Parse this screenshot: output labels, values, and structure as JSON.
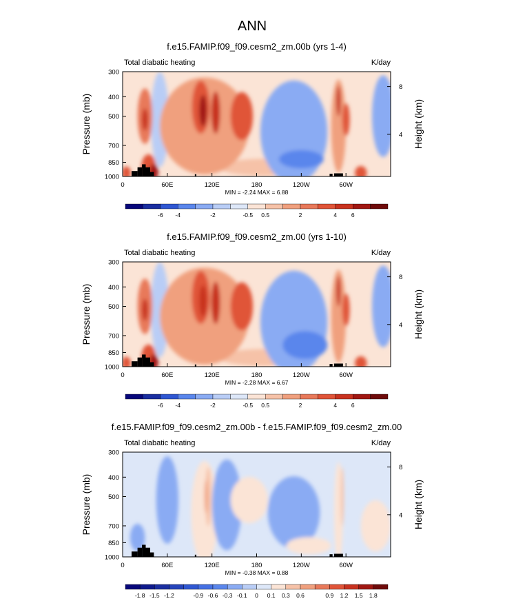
{
  "figure_title": "ANN",
  "chart_data": [
    {
      "type": "heatmap",
      "title": "f.e15.FAMIP.f09_f09.cesm2_zm.00b (yrs 1-4)",
      "left_string": "Total diabatic heating",
      "right_string": "K/day",
      "ylabel": "Pressure (mb)",
      "ylabel_right": "Height (km)",
      "yticks": [
        "300",
        "400",
        "500",
        "700",
        "850",
        "1000"
      ],
      "yticks_right": [
        "8",
        "4"
      ],
      "xticks": [
        "0",
        "60E",
        "120E",
        "180",
        "120W",
        "60W"
      ],
      "stats": "MIN =  -2.24   MAX =   6.88",
      "colorbar_labels": [
        "-6",
        "-4",
        "-2",
        "-0.5",
        "0.5",
        "2",
        "4",
        "6"
      ],
      "colorbar_colors": [
        "#07077a",
        "#1a2ea0",
        "#2f57d2",
        "#5a86ec",
        "#8aabf3",
        "#b9cdf6",
        "#dde7f8",
        "#fbe4d6",
        "#f6c2a8",
        "#f0a07e",
        "#e8795a",
        "#e05438",
        "#c8321f",
        "#a01712",
        "#6e0b0b"
      ],
      "blobs": [
        {
          "lon": 30,
          "p": 500,
          "rx": 10,
          "rp": 140,
          "level": 3
        },
        {
          "lon": 30,
          "p": 520,
          "rx": 4,
          "rp": 50,
          "level": 5
        },
        {
          "lon": 35,
          "p": 900,
          "rx": 10,
          "rp": 110,
          "level": 4
        },
        {
          "lon": 42,
          "p": 950,
          "rx": 6,
          "rp": 60,
          "level": 6
        },
        {
          "lon": 5,
          "p": 960,
          "rx": 6,
          "rp": 40,
          "level": 4
        },
        {
          "lon": 110,
          "p": 560,
          "rx": 60,
          "rp": 300,
          "level": 2
        },
        {
          "lon": 105,
          "p": 450,
          "rx": 12,
          "rp": 120,
          "level": 4
        },
        {
          "lon": 108,
          "p": 470,
          "rx": 5,
          "rp": 70,
          "level": 6
        },
        {
          "lon": 125,
          "p": 480,
          "rx": 6,
          "rp": 100,
          "level": 5
        },
        {
          "lon": 160,
          "p": 500,
          "rx": 15,
          "rp": 120,
          "level": 4
        },
        {
          "lon": 290,
          "p": 560,
          "rx": 10,
          "rp": 260,
          "level": 2
        },
        {
          "lon": 290,
          "p": 420,
          "rx": 3,
          "rp": 60,
          "level": 5
        },
        {
          "lon": 300,
          "p": 520,
          "rx": 5,
          "rp": 80,
          "level": 4
        },
        {
          "lon": 320,
          "p": 960,
          "rx": 8,
          "rp": 50,
          "level": 4
        },
        {
          "lon": 50,
          "p": 520,
          "rx": 12,
          "rp": 320,
          "level": -1
        },
        {
          "lon": 230,
          "p": 600,
          "rx": 45,
          "rp": 320,
          "level": -2
        },
        {
          "lon": 240,
          "p": 820,
          "rx": 30,
          "rp": 60,
          "level": -3
        },
        {
          "lon": 350,
          "p": 500,
          "rx": 15,
          "rp": 220,
          "level": -2
        },
        {
          "lon": 190,
          "p": 900,
          "rx": 60,
          "rp": 60,
          "level": 1
        }
      ]
    },
    {
      "type": "heatmap",
      "title": "f.e15.FAMIP.f09_f09.cesm2_zm.00 (yrs 1-10)",
      "left_string": "Total diabatic heating",
      "right_string": "K/day",
      "ylabel": "Pressure (mb)",
      "ylabel_right": "Height (km)",
      "yticks": [
        "300",
        "400",
        "500",
        "700",
        "850",
        "1000"
      ],
      "yticks_right": [
        "8",
        "4"
      ],
      "xticks": [
        "0",
        "60E",
        "120E",
        "180",
        "120W",
        "60W"
      ],
      "stats": "MIN =  -2.28   MAX =   6.67",
      "colorbar_labels": [
        "-6",
        "-4",
        "-2",
        "-0.5",
        "0.5",
        "2",
        "4",
        "6"
      ],
      "colorbar_colors": [
        "#07077a",
        "#1a2ea0",
        "#2f57d2",
        "#5a86ec",
        "#8aabf3",
        "#b9cdf6",
        "#dde7f8",
        "#fbe4d6",
        "#f6c2a8",
        "#f0a07e",
        "#e8795a",
        "#e05438",
        "#c8321f",
        "#a01712",
        "#6e0b0b"
      ],
      "blobs": [
        {
          "lon": 30,
          "p": 500,
          "rx": 10,
          "rp": 140,
          "level": 3
        },
        {
          "lon": 30,
          "p": 520,
          "rx": 4,
          "rp": 50,
          "level": 5
        },
        {
          "lon": 35,
          "p": 900,
          "rx": 10,
          "rp": 110,
          "level": 4
        },
        {
          "lon": 42,
          "p": 950,
          "rx": 6,
          "rp": 60,
          "level": 6
        },
        {
          "lon": 5,
          "p": 960,
          "rx": 6,
          "rp": 40,
          "level": 4
        },
        {
          "lon": 110,
          "p": 560,
          "rx": 60,
          "rp": 300,
          "level": 2
        },
        {
          "lon": 105,
          "p": 450,
          "rx": 12,
          "rp": 120,
          "level": 4
        },
        {
          "lon": 108,
          "p": 470,
          "rx": 5,
          "rp": 70,
          "level": 5
        },
        {
          "lon": 125,
          "p": 480,
          "rx": 6,
          "rp": 100,
          "level": 5
        },
        {
          "lon": 160,
          "p": 500,
          "rx": 15,
          "rp": 120,
          "level": 4
        },
        {
          "lon": 290,
          "p": 560,
          "rx": 10,
          "rp": 260,
          "level": 2
        },
        {
          "lon": 290,
          "p": 420,
          "rx": 3,
          "rp": 60,
          "level": 5
        },
        {
          "lon": 300,
          "p": 520,
          "rx": 5,
          "rp": 80,
          "level": 4
        },
        {
          "lon": 320,
          "p": 960,
          "rx": 8,
          "rp": 50,
          "level": 4
        },
        {
          "lon": 50,
          "p": 520,
          "rx": 12,
          "rp": 320,
          "level": -1
        },
        {
          "lon": 230,
          "p": 600,
          "rx": 45,
          "rp": 320,
          "level": -2
        },
        {
          "lon": 245,
          "p": 780,
          "rx": 30,
          "rp": 100,
          "level": -3
        },
        {
          "lon": 350,
          "p": 500,
          "rx": 15,
          "rp": 220,
          "level": -2
        },
        {
          "lon": 190,
          "p": 900,
          "rx": 60,
          "rp": 60,
          "level": 1
        }
      ]
    },
    {
      "type": "heatmap",
      "title": "f.e15.FAMIP.f09_f09.cesm2_zm.00b - f.e15.FAMIP.f09_f09.cesm2_zm.00",
      "left_string": "Total diabatic heating",
      "right_string": "K/day",
      "ylabel": "Pressure (mb)",
      "ylabel_right": "Height (km)",
      "yticks": [
        "300",
        "400",
        "500",
        "700",
        "850",
        "1000"
      ],
      "yticks_right": [
        "8",
        "4"
      ],
      "xticks": [
        "0",
        "60E",
        "120E",
        "180",
        "120W",
        "60W"
      ],
      "stats": "MIN =  -0.38   MAX =   0.88",
      "colorbar_labels": [
        "-1.8",
        "-1.5",
        "-1.2",
        "-0.9",
        "-0.6",
        "-0.3",
        "-0.1",
        "0",
        "0.1",
        "0.3",
        "0.6",
        "0.9",
        "1.2",
        "1.5",
        "1.8"
      ],
      "colorbar_colors": [
        "#07077a",
        "#0e1a8c",
        "#1a2ea0",
        "#2544bb",
        "#2f57d2",
        "#4570e3",
        "#5a86ec",
        "#8aabf3",
        "#b9cdf6",
        "#dde7f8",
        "#fbe4d6",
        "#f6c2a8",
        "#f0a07e",
        "#e8795a",
        "#e05438",
        "#c8321f",
        "#a01712",
        "#6e0b0b"
      ],
      "blobs": [
        {
          "lon": 60,
          "p": 520,
          "rx": 15,
          "rp": 250,
          "level": -1
        },
        {
          "lon": 110,
          "p": 600,
          "rx": 18,
          "rp": 320,
          "level": 1
        },
        {
          "lon": 115,
          "p": 500,
          "rx": 4,
          "rp": 150,
          "level": 2
        },
        {
          "lon": 112,
          "p": 500,
          "rx": 2,
          "rp": 80,
          "level": 3
        },
        {
          "lon": 140,
          "p": 550,
          "rx": 20,
          "rp": 250,
          "level": -1
        },
        {
          "lon": 170,
          "p": 520,
          "rx": 25,
          "rp": 120,
          "level": 1
        },
        {
          "lon": 230,
          "p": 600,
          "rx": 35,
          "rp": 220,
          "level": -1
        },
        {
          "lon": 290,
          "p": 600,
          "rx": 6,
          "rp": 300,
          "level": 1
        },
        {
          "lon": 295,
          "p": 500,
          "rx": 2,
          "rp": 150,
          "level": 2
        },
        {
          "lon": 20,
          "p": 800,
          "rx": 10,
          "rp": 100,
          "level": -1
        },
        {
          "lon": 340,
          "p": 700,
          "rx": 20,
          "rp": 180,
          "level": 1
        },
        {
          "lon": 250,
          "p": 880,
          "rx": 30,
          "rp": 60,
          "level": 1
        }
      ]
    }
  ]
}
